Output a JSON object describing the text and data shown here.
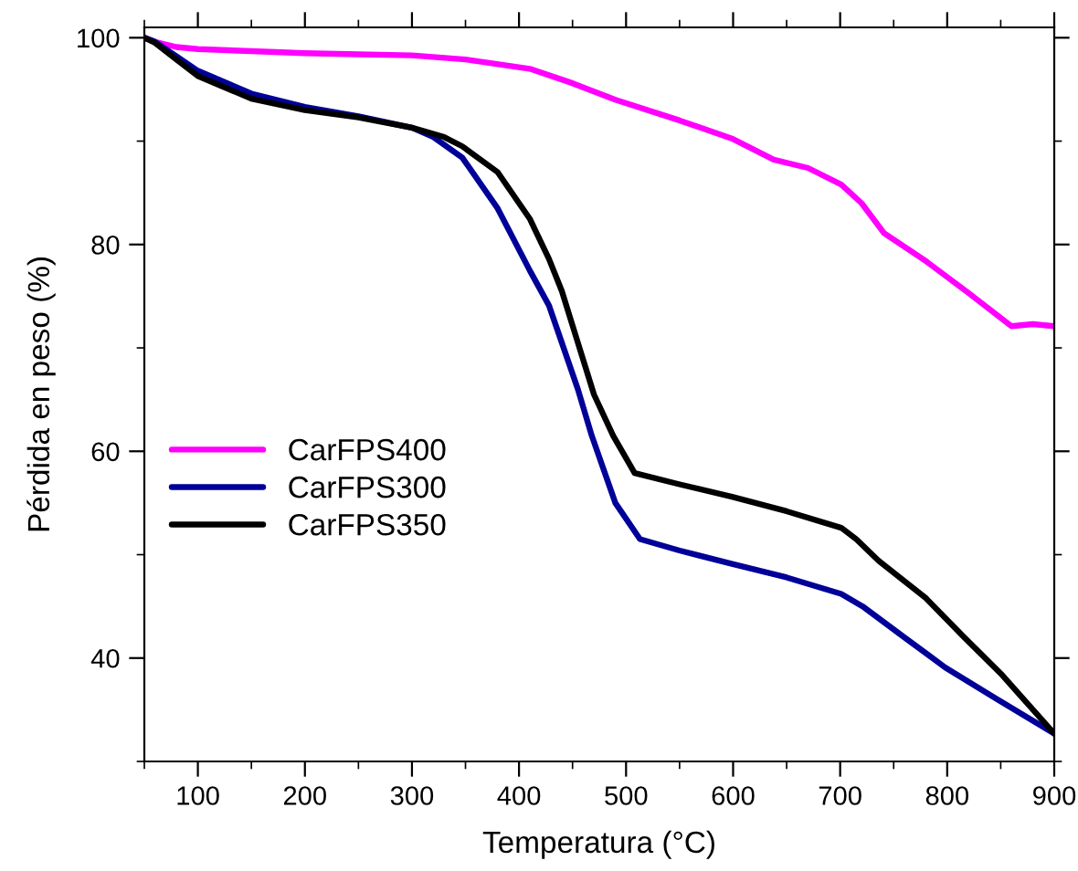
{
  "chart_data": {
    "type": "line",
    "xlabel": "Temperatura (°C)",
    "ylabel": "Pérdida en peso (%)",
    "xlim": [
      50,
      900
    ],
    "ylim": [
      30,
      101
    ],
    "xticks": [
      100,
      200,
      300,
      400,
      500,
      600,
      700,
      800,
      900
    ],
    "yticks": [
      40,
      60,
      80,
      100
    ],
    "grid": false,
    "legend": "left",
    "marker": "none",
    "line_style": "solid",
    "series": [
      {
        "name": "CarFPS400",
        "color": "#ff00ff",
        "x": [
          50,
          60,
          80,
          100,
          150,
          200,
          250,
          300,
          350,
          410,
          450,
          490,
          550,
          600,
          638,
          670,
          701,
          720,
          741,
          780,
          820,
          860,
          880,
          900
        ],
        "values": [
          100,
          99.6,
          99.1,
          98.9,
          98.7,
          98.5,
          98.4,
          98.3,
          97.9,
          97.0,
          95.6,
          94.0,
          92.0,
          90.2,
          88.2,
          87.4,
          85.8,
          84.0,
          81.1,
          78.4,
          75.3,
          72.1,
          72.3,
          72.1
        ]
      },
      {
        "name": "CarFPS300",
        "color": "#000099",
        "x": [
          50,
          60,
          80,
          100,
          150,
          200,
          250,
          300,
          320,
          347,
          380,
          410,
          428,
          440,
          455,
          468,
          490,
          513,
          550,
          599,
          650,
          701,
          721,
          760,
          798,
          850,
          900
        ],
        "values": [
          100,
          99.6,
          98.2,
          96.8,
          94.6,
          93.3,
          92.4,
          91.3,
          90.4,
          88.4,
          83.5,
          77.5,
          74.1,
          70.5,
          66.0,
          61.5,
          55.0,
          51.5,
          50.4,
          49.1,
          47.8,
          46.2,
          45.0,
          42.0,
          39.1,
          35.8,
          32.7
        ]
      },
      {
        "name": "CarFPS350",
        "color": "#000000",
        "x": [
          50,
          60,
          80,
          100,
          150,
          200,
          250,
          300,
          330,
          347,
          380,
          410,
          428,
          440,
          455,
          470,
          488,
          508,
          550,
          599,
          650,
          701,
          715,
          736,
          780,
          815,
          850,
          900
        ],
        "values": [
          100,
          99.5,
          97.9,
          96.3,
          94.1,
          93.0,
          92.3,
          91.3,
          90.4,
          89.5,
          87.0,
          82.5,
          78.6,
          75.5,
          70.5,
          65.5,
          61.5,
          57.9,
          56.8,
          55.6,
          54.2,
          52.6,
          51.5,
          49.4,
          45.8,
          42.1,
          38.5,
          32.7
        ]
      }
    ]
  }
}
